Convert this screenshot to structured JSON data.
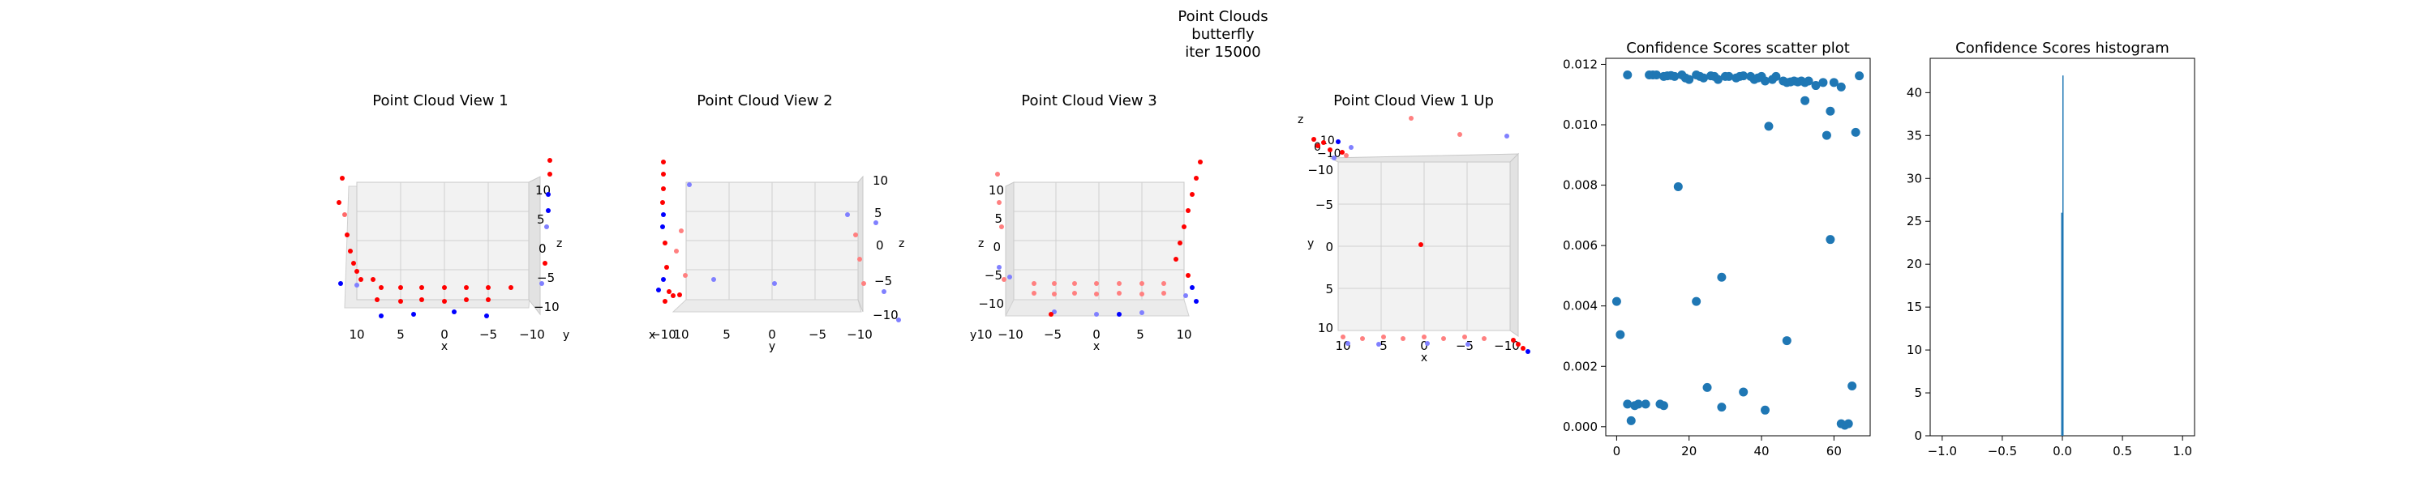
{
  "figure": {
    "suptitle": [
      "Point Clouds",
      "butterfly",
      "iter 15000"
    ]
  },
  "colors": {
    "scatter": "#1f77b4",
    "point_red": "#ff0000",
    "point_blue": "#0000ff"
  },
  "views": [
    {
      "title": "Point Cloud View 1",
      "horizontal": {
        "label": "x",
        "ticks": [
          "10",
          "5",
          "0",
          "−5",
          "−10"
        ]
      },
      "depth": {
        "label": "y"
      },
      "vertical": {
        "label": "z",
        "ticks": [
          "10",
          "5",
          "0",
          "−5",
          "−10"
        ]
      }
    },
    {
      "title": "Point Cloud View 2",
      "horizontal": {
        "label": "y",
        "ticks": [
          "10",
          "5",
          "0",
          "−5",
          "−10"
        ]
      },
      "depth": {
        "label": "x",
        "ticks": [
          "−10"
        ]
      },
      "vertical": {
        "label": "z",
        "ticks": [
          "10",
          "5",
          "0",
          "−5",
          "−10"
        ]
      }
    },
    {
      "title": "Point Cloud View 3",
      "horizontal": {
        "label": "x",
        "ticks": [
          "−10",
          "−5",
          "0",
          "5",
          "10"
        ]
      },
      "depth": {
        "label": "y",
        "ticks": [
          "10"
        ]
      },
      "vertical": {
        "label": "z",
        "ticks": [
          "10",
          "5",
          "0",
          "−5",
          "−10"
        ]
      }
    },
    {
      "title": "Point Cloud View 1 Up",
      "horizontal": {
        "label": "x",
        "ticks": [
          "10",
          "5",
          "0",
          "−5",
          "−10"
        ]
      },
      "vertical": {
        "label": "y",
        "ticks": [
          "−10",
          "−5",
          "0",
          "5",
          "10"
        ]
      },
      "depth": {
        "label": "z"
      },
      "corner_ticks": [
        "10",
        "0",
        "−10"
      ]
    }
  ],
  "chart_data": [
    {
      "type": "scatter",
      "title": "Confidence Scores scatter plot",
      "xlabel": "",
      "ylabel": "",
      "xlim": [
        -3,
        70
      ],
      "ylim": [
        -0.0003,
        0.0122
      ],
      "xticks": [
        0,
        20,
        40,
        60
      ],
      "yticks": [
        0.0,
        0.002,
        0.004,
        0.006,
        0.008,
        0.01,
        0.012
      ],
      "ytick_labels": [
        "0.000",
        "0.002",
        "0.004",
        "0.006",
        "0.008",
        "0.010",
        "0.012"
      ],
      "x": [
        3,
        9,
        10,
        11,
        13,
        14,
        15,
        16,
        18,
        19,
        20,
        22,
        23,
        24,
        26,
        27,
        28,
        30,
        31,
        33,
        34,
        35,
        37,
        38,
        39,
        40,
        41,
        43,
        44,
        46,
        47,
        48,
        49,
        50,
        51,
        52,
        53,
        55,
        57,
        60,
        62,
        67,
        42,
        58,
        52,
        59,
        66,
        17,
        59,
        0,
        29,
        22,
        1,
        47,
        25,
        35,
        3,
        8,
        6,
        5,
        12,
        13,
        29,
        41,
        4,
        62,
        64,
        63,
        65
      ],
      "y": [
        0.01165,
        0.01165,
        0.01165,
        0.01165,
        0.0116,
        0.01162,
        0.01163,
        0.0116,
        0.01165,
        0.01155,
        0.0115,
        0.01165,
        0.0116,
        0.01155,
        0.01162,
        0.0116,
        0.0115,
        0.0116,
        0.0116,
        0.01155,
        0.0116,
        0.01162,
        0.0116,
        0.0115,
        0.01155,
        0.0116,
        0.01145,
        0.0115,
        0.0116,
        0.01145,
        0.0114,
        0.01142,
        0.01145,
        0.01142,
        0.01145,
        0.0114,
        0.01145,
        0.0113,
        0.0114,
        0.0114,
        0.01125,
        0.01162,
        0.00995,
        0.00965,
        0.0108,
        0.01045,
        0.00975,
        0.00795,
        0.0062,
        0.00415,
        0.00495,
        0.00415,
        0.00305,
        0.00285,
        0.0013,
        0.00115,
        0.00075,
        0.00075,
        0.00075,
        0.0007,
        0.00075,
        0.0007,
        0.00065,
        0.00055,
        0.0002,
        0.0001,
        0.0001,
        5e-05,
        0.00135
      ]
    },
    {
      "type": "bar",
      "title": "Confidence Scores histogram",
      "xlabel": "",
      "ylabel": "",
      "xlim": [
        -1.1,
        1.1
      ],
      "ylim": [
        0,
        44
      ],
      "xticks": [
        -1.0,
        -0.5,
        0.0,
        0.5,
        1.0
      ],
      "xtick_labels": [
        "−1.0",
        "−0.5",
        "0.0",
        "0.5",
        "1.0"
      ],
      "yticks": [
        0,
        5,
        10,
        15,
        20,
        25,
        30,
        35,
        40
      ],
      "bins": [
        {
          "x0": -0.01,
          "x1": 0.0,
          "count": 26
        },
        {
          "x0": 0.0,
          "x1": 0.01,
          "count": 42
        }
      ]
    }
  ]
}
